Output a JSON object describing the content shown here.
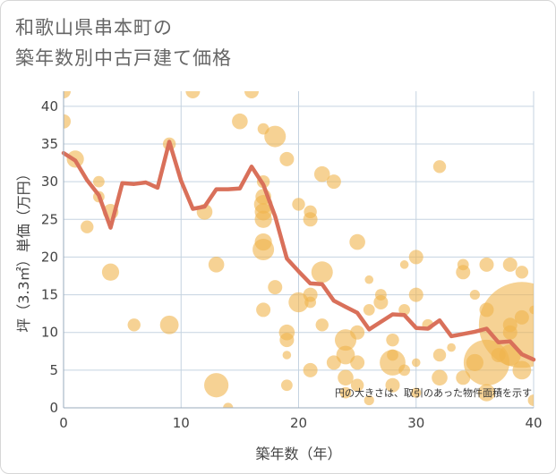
{
  "chart_data": {
    "type": "scatter",
    "title": "和歌山県串本町の\n築年数別中古戸建て価格",
    "xlabel": "築年数（年）",
    "ylabel": "坪（3.3㎡）単価（万円）",
    "xlim": [
      0,
      40
    ],
    "ylim": [
      0,
      42
    ],
    "x_ticks": [
      0,
      10,
      20,
      30,
      40
    ],
    "y_ticks": [
      0,
      5,
      10,
      15,
      20,
      25,
      30,
      35,
      40
    ],
    "grid": true,
    "note": "円の大きさは、取引のあった物件面積を示す",
    "colors": {
      "bubble": "#f0b44c",
      "line": "#d9705a",
      "grid": "#c5d3e0",
      "axis": "#9aabbd"
    },
    "series": [
      {
        "kind": "bubbles",
        "points": [
          {
            "x": 0,
            "y": 42,
            "s": 1.0
          },
          {
            "x": 0,
            "y": 38,
            "s": 1.0
          },
          {
            "x": 1,
            "y": 33,
            "s": 1.2
          },
          {
            "x": 2,
            "y": 24,
            "s": 0.9
          },
          {
            "x": 3,
            "y": 30,
            "s": 0.8
          },
          {
            "x": 3,
            "y": 28,
            "s": 0.8
          },
          {
            "x": 4,
            "y": 26,
            "s": 1.1
          },
          {
            "x": 4,
            "y": 18,
            "s": 1.2
          },
          {
            "x": 6,
            "y": 11,
            "s": 0.9
          },
          {
            "x": 9,
            "y": 35,
            "s": 0.9
          },
          {
            "x": 9,
            "y": 11,
            "s": 1.3
          },
          {
            "x": 11,
            "y": 42,
            "s": 1.0
          },
          {
            "x": 12,
            "y": 26,
            "s": 1.1
          },
          {
            "x": 13,
            "y": 19,
            "s": 1.1
          },
          {
            "x": 13,
            "y": 3,
            "s": 1.7
          },
          {
            "x": 14,
            "y": 0,
            "s": 0.7
          },
          {
            "x": 15,
            "y": 38,
            "s": 1.1
          },
          {
            "x": 16,
            "y": 42,
            "s": 1.0
          },
          {
            "x": 17,
            "y": 37,
            "s": 0.8
          },
          {
            "x": 17,
            "y": 30,
            "s": 0.9
          },
          {
            "x": 17,
            "y": 28,
            "s": 1.1
          },
          {
            "x": 17,
            "y": 27,
            "s": 1.3
          },
          {
            "x": 17,
            "y": 26,
            "s": 1.2
          },
          {
            "x": 17,
            "y": 25,
            "s": 1.2
          },
          {
            "x": 17,
            "y": 22,
            "s": 1.2
          },
          {
            "x": 17,
            "y": 21,
            "s": 1.5
          },
          {
            "x": 17,
            "y": 13,
            "s": 1.0
          },
          {
            "x": 18,
            "y": 36,
            "s": 1.5
          },
          {
            "x": 18,
            "y": 16,
            "s": 1.0
          },
          {
            "x": 19,
            "y": 33,
            "s": 1.0
          },
          {
            "x": 19,
            "y": 10,
            "s": 1.1
          },
          {
            "x": 19,
            "y": 9,
            "s": 1.0
          },
          {
            "x": 19,
            "y": 7,
            "s": 0.6
          },
          {
            "x": 19,
            "y": 3,
            "s": 0.8
          },
          {
            "x": 20,
            "y": 27,
            "s": 0.9
          },
          {
            "x": 20,
            "y": 14,
            "s": 1.4
          },
          {
            "x": 21,
            "y": 26,
            "s": 0.9
          },
          {
            "x": 21,
            "y": 25,
            "s": 1.0
          },
          {
            "x": 21,
            "y": 15,
            "s": 1.0
          },
          {
            "x": 21,
            "y": 14,
            "s": 0.8
          },
          {
            "x": 21,
            "y": 5,
            "s": 1.0
          },
          {
            "x": 22,
            "y": 31,
            "s": 1.1
          },
          {
            "x": 22,
            "y": 18,
            "s": 1.5
          },
          {
            "x": 22,
            "y": 11,
            "s": 0.9
          },
          {
            "x": 23,
            "y": 30,
            "s": 1.0
          },
          {
            "x": 23,
            "y": 6,
            "s": 1.0
          },
          {
            "x": 24,
            "y": 9,
            "s": 1.5
          },
          {
            "x": 24,
            "y": 7,
            "s": 1.3
          },
          {
            "x": 24,
            "y": 4,
            "s": 1.1
          },
          {
            "x": 24,
            "y": 2,
            "s": 0.8
          },
          {
            "x": 25,
            "y": 22,
            "s": 1.1
          },
          {
            "x": 25,
            "y": 10,
            "s": 1.0
          },
          {
            "x": 25,
            "y": 6,
            "s": 1.0
          },
          {
            "x": 25,
            "y": 3,
            "s": 0.9
          },
          {
            "x": 26,
            "y": 17,
            "s": 0.6
          },
          {
            "x": 26,
            "y": 13,
            "s": 0.8
          },
          {
            "x": 26,
            "y": 1,
            "s": 0.7
          },
          {
            "x": 27,
            "y": 15,
            "s": 0.8
          },
          {
            "x": 27,
            "y": 14,
            "s": 1.0
          },
          {
            "x": 28,
            "y": 9,
            "s": 0.9
          },
          {
            "x": 28,
            "y": 7,
            "s": 0.8
          },
          {
            "x": 28,
            "y": 6,
            "s": 1.8
          },
          {
            "x": 28,
            "y": 3,
            "s": 1.0
          },
          {
            "x": 29,
            "y": 19,
            "s": 0.6
          },
          {
            "x": 29,
            "y": 13,
            "s": 0.8
          },
          {
            "x": 29,
            "y": 5,
            "s": 0.8
          },
          {
            "x": 30,
            "y": 20,
            "s": 1.0
          },
          {
            "x": 30,
            "y": 15,
            "s": 1.0
          },
          {
            "x": 30,
            "y": 6,
            "s": 0.6
          },
          {
            "x": 30,
            "y": 2,
            "s": 0.7
          },
          {
            "x": 31,
            "y": 11,
            "s": 0.8
          },
          {
            "x": 32,
            "y": 32,
            "s": 0.9
          },
          {
            "x": 32,
            "y": 7,
            "s": 0.9
          },
          {
            "x": 32,
            "y": 4,
            "s": 1.1
          },
          {
            "x": 33,
            "y": 8,
            "s": 0.6
          },
          {
            "x": 34,
            "y": 19,
            "s": 0.8
          },
          {
            "x": 34,
            "y": 18,
            "s": 1.0
          },
          {
            "x": 34,
            "y": 4,
            "s": 1.0
          },
          {
            "x": 35,
            "y": 15,
            "s": 0.7
          },
          {
            "x": 35,
            "y": 6,
            "s": 1.2
          },
          {
            "x": 36,
            "y": 19,
            "s": 1.0
          },
          {
            "x": 36,
            "y": 13,
            "s": 1.0
          },
          {
            "x": 36,
            "y": 6,
            "s": 3.2
          },
          {
            "x": 36,
            "y": 2,
            "s": 1.2
          },
          {
            "x": 37,
            "y": 7,
            "s": 1.0
          },
          {
            "x": 38,
            "y": 19,
            "s": 1.0
          },
          {
            "x": 38,
            "y": 11,
            "s": 1.0
          },
          {
            "x": 38,
            "y": 10,
            "s": 1.0
          },
          {
            "x": 38,
            "y": 7,
            "s": 1.5
          },
          {
            "x": 39,
            "y": 18,
            "s": 0.9
          },
          {
            "x": 39,
            "y": 12,
            "s": 1.0
          },
          {
            "x": 39,
            "y": 11,
            "s": 6.0
          },
          {
            "x": 39,
            "y": 5,
            "s": 1.3
          },
          {
            "x": 40,
            "y": 13,
            "s": 0.6
          },
          {
            "x": 40,
            "y": 1,
            "s": 0.8
          }
        ]
      },
      {
        "kind": "line",
        "x": [
          0,
          1,
          2,
          3,
          4,
          5,
          6,
          7,
          8,
          9,
          10,
          11,
          12,
          13,
          14,
          15,
          16,
          17,
          18,
          19,
          20,
          21,
          22,
          23,
          24,
          25,
          26,
          27,
          28,
          29,
          30,
          31,
          32,
          33,
          34,
          35,
          36,
          37,
          38,
          39,
          40
        ],
        "y": [
          33.8,
          32.8,
          30.2,
          28.2,
          23.9,
          29.8,
          29.7,
          29.9,
          29.2,
          35.3,
          30.1,
          26.4,
          26.7,
          29.0,
          29.0,
          29.1,
          32.0,
          29.6,
          25.4,
          19.8,
          18.1,
          16.5,
          16.4,
          14.2,
          13.4,
          12.6,
          10.4,
          11.4,
          12.4,
          12.3,
          10.6,
          10.5,
          11.6,
          9.5,
          9.8,
          10.1,
          10.5,
          8.7,
          8.8,
          7.1,
          6.4
        ]
      }
    ]
  }
}
